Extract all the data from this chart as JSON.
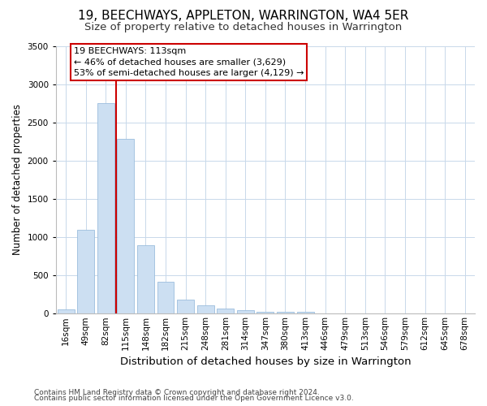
{
  "title": "19, BEECHWAYS, APPLETON, WARRINGTON, WA4 5ER",
  "subtitle": "Size of property relative to detached houses in Warrington",
  "xlabel": "Distribution of detached houses by size in Warrington",
  "ylabel": "Number of detached properties",
  "footnote1": "Contains HM Land Registry data © Crown copyright and database right 2024.",
  "footnote2": "Contains public sector information licensed under the Open Government Licence v3.0.",
  "annotation_title": "19 BEECHWAYS: 113sqm",
  "annotation_line1": "← 46% of detached houses are smaller (3,629)",
  "annotation_line2": "53% of semi-detached houses are larger (4,129) →",
  "bar_color": "#ccdff2",
  "bar_edge_color": "#9bbedd",
  "highlight_line_color": "#cc0000",
  "annotation_box_edge_color": "#cc0000",
  "background_color": "#ffffff",
  "grid_color": "#c8d8ea",
  "categories": [
    "16sqm",
    "49sqm",
    "82sqm",
    "115sqm",
    "148sqm",
    "182sqm",
    "215sqm",
    "248sqm",
    "281sqm",
    "314sqm",
    "347sqm",
    "380sqm",
    "413sqm",
    "446sqm",
    "479sqm",
    "513sqm",
    "546sqm",
    "579sqm",
    "612sqm",
    "645sqm",
    "678sqm"
  ],
  "values": [
    55,
    1100,
    2750,
    2280,
    890,
    415,
    185,
    105,
    70,
    45,
    20,
    20,
    25,
    8,
    4,
    3,
    2,
    2,
    1,
    1,
    1
  ],
  "ylim": [
    0,
    3500
  ],
  "yticks": [
    0,
    500,
    1000,
    1500,
    2000,
    2500,
    3000,
    3500
  ],
  "highlight_bin_idx": 3,
  "title_fontsize": 11,
  "subtitle_fontsize": 9.5,
  "xlabel_fontsize": 9.5,
  "ylabel_fontsize": 8.5,
  "tick_fontsize": 7.5,
  "annotation_fontsize": 8,
  "footnote_fontsize": 6.5
}
